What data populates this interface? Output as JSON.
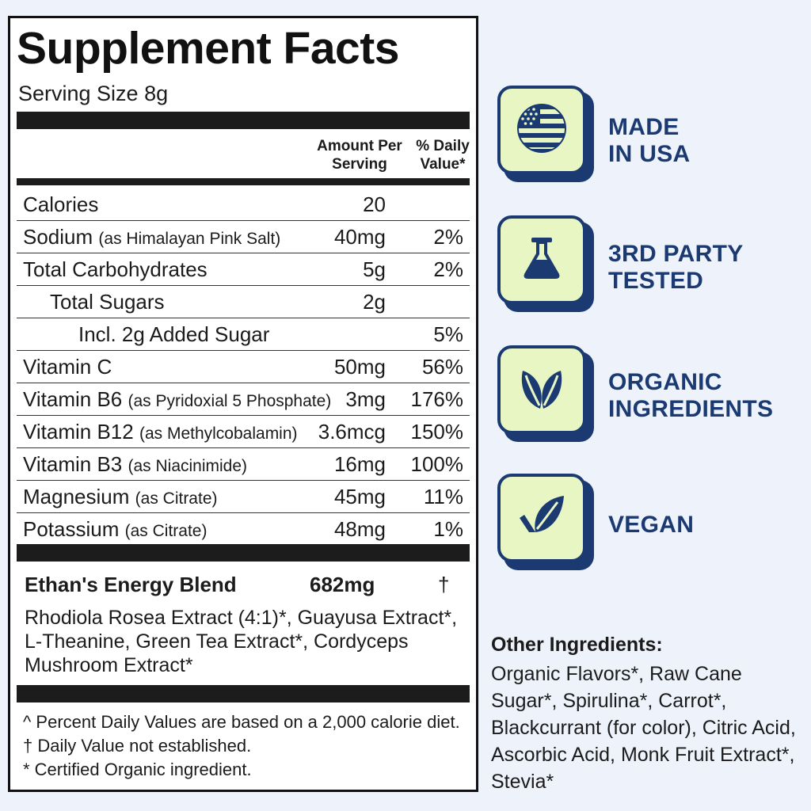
{
  "panel": {
    "title": "Supplement Facts",
    "serving_size": "Serving Size 8g",
    "col_amount": "Amount Per Serving",
    "col_dv": "% Daily Value*",
    "rows": [
      {
        "name": "Calories",
        "sub": "",
        "amount": "20",
        "dv": ""
      },
      {
        "name": "Sodium",
        "sub": "(as Himalayan Pink Salt)",
        "amount": "40mg",
        "dv": "2%"
      },
      {
        "name": "Total Carbohydrates",
        "sub": "",
        "amount": "5g",
        "dv": "2%"
      },
      {
        "name": "Total Sugars",
        "sub": "",
        "amount": "2g",
        "dv": ""
      },
      {
        "name": "Incl. 2g Added Sugar",
        "sub": "",
        "amount": "",
        "dv": "5%"
      },
      {
        "name": "Vitamin C",
        "sub": "",
        "amount": "50mg",
        "dv": "56%"
      },
      {
        "name": "Vitamin B6",
        "sub": "(as Pyridoxial 5 Phosphate)",
        "amount": "3mg",
        "dv": "176%"
      },
      {
        "name": "Vitamin B12",
        "sub": "(as Methylcobalamin)",
        "amount": "3.6mcg",
        "dv": "150%"
      },
      {
        "name": "Vitamin B3",
        "sub": "(as Niacinimide)",
        "amount": "16mg",
        "dv": "100%"
      },
      {
        "name": "Magnesium",
        "sub": "(as Citrate)",
        "amount": "45mg",
        "dv": "11%"
      },
      {
        "name": "Potassium",
        "sub": "(as Citrate)",
        "amount": "48mg",
        "dv": "1%"
      }
    ],
    "blend_name": "Ethan's Energy Blend",
    "blend_amount": "682mg",
    "blend_dv": "†",
    "blend_ingredients": "Rhodiola Rosea Extract (4:1)*, Guayusa Extract*, L-Theanine, Green Tea Extract*, Cordyceps Mushroom Extract*",
    "footnote_1": "^ Percent Daily Values are based on a 2,000 calorie diet.",
    "footnote_2": "† Daily Value not established.",
    "footnote_3": "* Certified Organic ingredient."
  },
  "badges": [
    {
      "icon": "usa-flag-icon",
      "label": "MADE\nIN USA"
    },
    {
      "icon": "lab-flask-icon",
      "label": "3RD PARTY\nTESTED"
    },
    {
      "icon": "leaves-icon",
      "label": "ORGANIC\nINGREDIENTS"
    },
    {
      "icon": "vegan-leaf-check-icon",
      "label": "VEGAN"
    }
  ],
  "other_ingredients": {
    "title": "Other Ingredients:",
    "text": "Organic Flavors*, Raw Cane Sugar*, Spirulina*, Carrot*, Blackcurrant (for color), Citric Acid, Ascorbic Acid, Monk Fruit Extract*, Stevia*"
  },
  "colors": {
    "navy": "#1b3a72",
    "badge_fill": "#e8f6c4",
    "background": "#eef3fb",
    "panel_ink": "#111111"
  }
}
